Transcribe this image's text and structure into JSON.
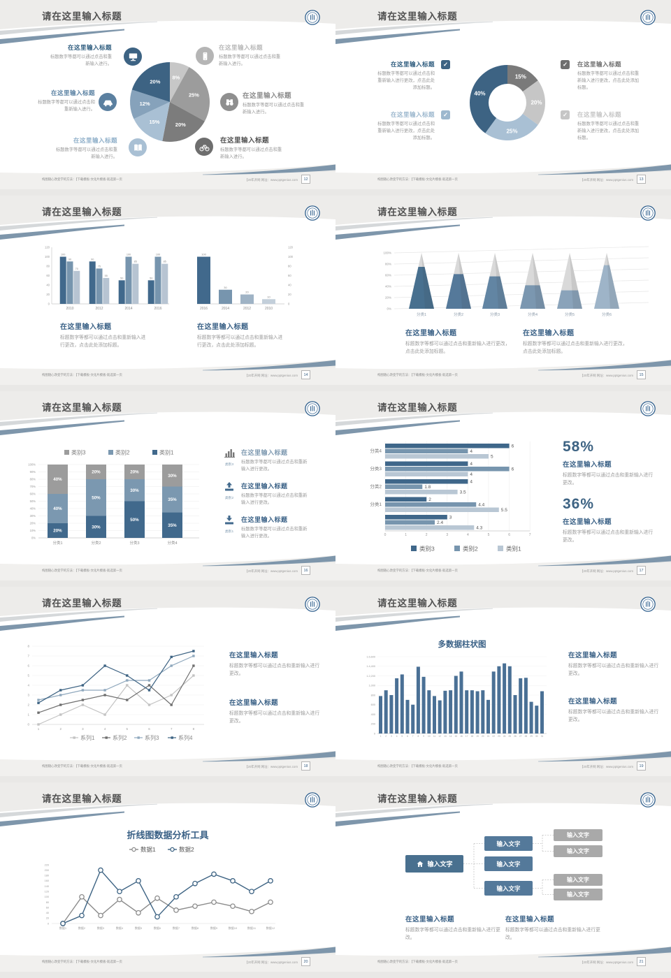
{
  "shared": {
    "slide_title": "请在这里输入标题",
    "footer_left": "构图随心改变学的方法：【下载模板-文化片模板-就选第一页",
    "footer_right": "【20年开网 网址：www.pptgenius.com",
    "item_title": "在这里输入标题",
    "body_item": "标题数字等都可以通过点击和重新输入进行。",
    "body_med": "标题数字等都可以通过点击和重新输入进行更改，点击此处添加标题。",
    "body_short": "标题数字等都可以通过点击和重新输入进行更改。"
  },
  "slides": [
    {
      "page": "12"
    },
    {
      "page": "13"
    },
    {
      "page": "14"
    },
    {
      "page": "15"
    },
    {
      "page": "16",
      "captions": [
        "类别3",
        "类别2",
        "类别1"
      ]
    },
    {
      "page": "17",
      "pct1": "58%",
      "pct2": "36%"
    },
    {
      "page": "18"
    },
    {
      "page": "19"
    },
    {
      "page": "20"
    },
    {
      "page": "21",
      "box_label": "输入文字"
    }
  ],
  "chart_data": [
    {
      "name": "pie-breakdown",
      "type": "pie",
      "values": [
        8,
        25,
        20,
        15,
        12,
        20
      ],
      "labels": [
        "8%",
        "25%",
        "20%",
        "15%",
        "12%",
        "20%"
      ],
      "colors": [
        "#c7c7c7",
        "#9c9c9c",
        "#7c7c7c",
        "#a9c0d4",
        "#86a2bb",
        "#3d6383"
      ]
    },
    {
      "name": "donut-share",
      "type": "pie",
      "donut": true,
      "values": [
        15,
        20,
        25,
        40
      ],
      "labels": [
        "15%",
        "20%",
        "25%",
        "40%"
      ],
      "colors": [
        "#7a7a7a",
        "#c6c6c6",
        "#a9c0d4",
        "#3d6383"
      ]
    },
    {
      "name": "grouped-bars",
      "type": "bar",
      "categories": [
        "2010",
        "2012",
        "2014",
        "2016"
      ],
      "ylim": [
        0,
        120
      ],
      "yticks": [
        0,
        20,
        40,
        60,
        80,
        100,
        120
      ],
      "series": [
        {
          "color": "#41698c",
          "values": [
            100,
            90,
            50,
            50
          ]
        },
        {
          "color": "#7795ae",
          "values": [
            90,
            75,
            100,
            100
          ]
        },
        {
          "color": "#b7c4d2",
          "values": [
            70,
            55,
            85,
            85
          ]
        }
      ]
    },
    {
      "name": "single-bars",
      "type": "bar",
      "categories": [
        "2016",
        "2014",
        "2012",
        "2010"
      ],
      "ylim": [
        0,
        120
      ],
      "yticks": [
        0,
        20,
        40,
        60,
        80,
        100,
        120
      ],
      "values": [
        100,
        30,
        20,
        10
      ],
      "colors": [
        "#41698c",
        "#7795ae",
        "#9fb3c5",
        "#c3cfda"
      ]
    },
    {
      "name": "pyramid-percent",
      "type": "pyramid",
      "categories": [
        "分类1",
        "分类2",
        "分类3",
        "分类4",
        "分类5",
        "分类6"
      ],
      "values": [
        75,
        62,
        58,
        42,
        33,
        78
      ],
      "colors": [
        "#48708f",
        "#55799a",
        "#6285a3",
        "#7b97b0",
        "#8aa3ba",
        "#9eb4c8"
      ],
      "ylim": [
        0,
        100
      ]
    },
    {
      "name": "stacked-percent",
      "type": "stacked",
      "categories": [
        "分类1",
        "分类2",
        "分类3",
        "分类4"
      ],
      "ylim": [
        0,
        100
      ],
      "legend": [
        "类别3",
        "类别2",
        "类别1"
      ],
      "series": [
        {
          "name": "类别1",
          "color": "#41698c",
          "values": [
            20,
            30,
            50,
            35
          ]
        },
        {
          "name": "类别2",
          "color": "#7b98b0",
          "values": [
            40,
            50,
            30,
            35
          ]
        },
        {
          "name": "类别3",
          "color": "#9c9c9c",
          "values": [
            40,
            20,
            20,
            30
          ]
        }
      ]
    },
    {
      "name": "hbar-compare",
      "type": "hbar",
      "categories": [
        "分类4",
        "分类3",
        "分类2",
        "分类1",
        ""
      ],
      "xlim": [
        0,
        7
      ],
      "series": [
        {
          "name": "类别3",
          "color": "#3f678a",
          "values": [
            6,
            4,
            4,
            2,
            3
          ]
        },
        {
          "name": "类别2",
          "color": "#7795ae",
          "values": [
            4,
            6,
            1.8,
            4.4,
            2.4
          ]
        },
        {
          "name": "类别1",
          "color": "#b9c7d4",
          "values": [
            5,
            4,
            3.5,
            5.5,
            4.3
          ]
        }
      ]
    },
    {
      "name": "four-lines",
      "type": "line",
      "x": [
        1,
        2,
        3,
        4,
        5,
        6,
        7,
        8
      ],
      "ylim": [
        0,
        8
      ],
      "series": [
        {
          "name": "系列1",
          "color": "#c3c3c3",
          "values": [
            0,
            1,
            2,
            1,
            4,
            2,
            3,
            5
          ]
        },
        {
          "name": "系列2",
          "color": "#6f6f6f",
          "values": [
            1.2,
            2,
            2.5,
            3,
            2.5,
            4,
            2,
            6
          ]
        },
        {
          "name": "系列3",
          "color": "#8fa8bd",
          "values": [
            2.5,
            3,
            3.5,
            3.5,
            4.5,
            4.5,
            6,
            7
          ]
        },
        {
          "name": "系列4",
          "color": "#3d6383",
          "values": [
            2.2,
            3.5,
            4,
            6,
            5,
            3.5,
            6.9,
            7.5
          ]
        }
      ]
    },
    {
      "name": "multi-columns",
      "type": "column",
      "title": "多数据柱状图",
      "ylim": [
        0,
        1600
      ],
      "values": [
        780,
        900,
        800,
        1150,
        1230,
        700,
        600,
        1390,
        1180,
        900,
        780,
        690,
        890,
        900,
        1200,
        1290,
        900,
        900,
        880,
        900,
        700,
        1290,
        1400,
        1460,
        1400,
        800,
        1150,
        1160,
        660,
        580,
        880
      ],
      "xlabels": [
        "1",
        "2",
        "3",
        "4",
        "5",
        "6",
        "7",
        "8",
        "9",
        "10",
        "11",
        "12",
        "13",
        "14",
        "15",
        "16",
        "17",
        "18",
        "19",
        "20",
        "21",
        "22",
        "23",
        "24",
        "25",
        "26",
        "27",
        "28",
        "29",
        "30",
        "31"
      ]
    },
    {
      "name": "two-lines",
      "type": "line",
      "title": "折线图数据分析工具",
      "x_labels": [
        "数据1",
        "数据2",
        "数据3",
        "数据4",
        "数据5",
        "数据6",
        "数据7",
        "数据8",
        "数据9",
        "数据10",
        "数据11",
        "数据12"
      ],
      "ylim": [
        0,
        220
      ],
      "series": [
        {
          "name": "数据1",
          "color": "#8c8c8c",
          "values": [
            0,
            100,
            30,
            90,
            40,
            95,
            50,
            65,
            80,
            65,
            45,
            80
          ]
        },
        {
          "name": "数据2",
          "color": "#3d6383",
          "values": [
            0,
            30,
            200,
            120,
            160,
            25,
            100,
            150,
            185,
            160,
            120,
            160
          ]
        }
      ]
    }
  ]
}
